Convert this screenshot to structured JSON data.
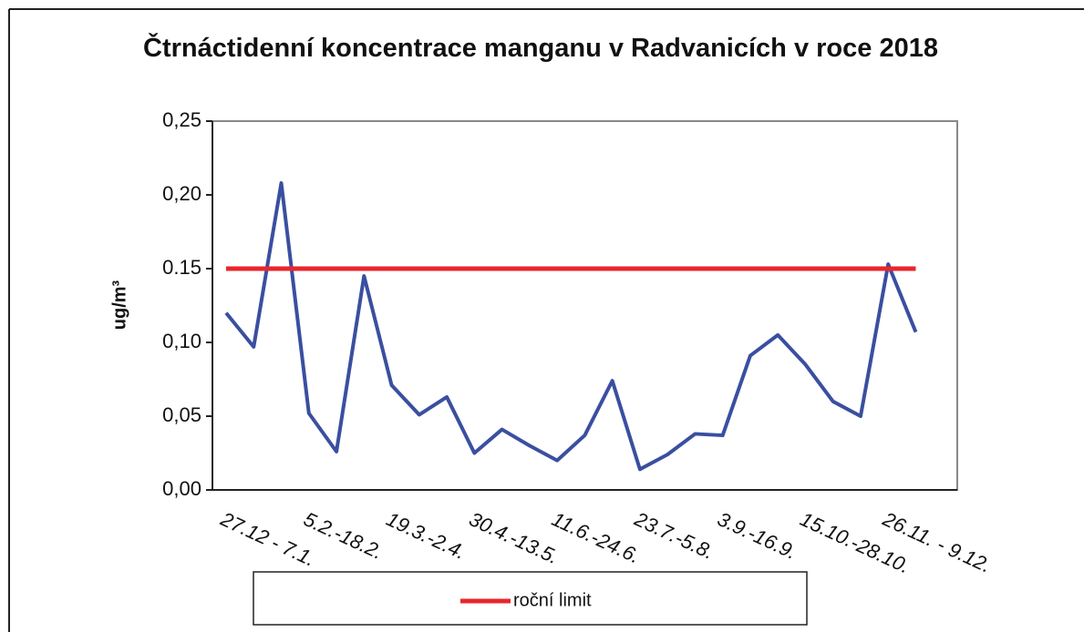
{
  "chart_data": {
    "type": "line",
    "title": "Čtrnáctidenní koncentrace manganu v Radvanicích v roce 2018",
    "y_label": "ug/m³",
    "categories": [
      "27.12 - 7.1.",
      null,
      null,
      "5.2.-18.2.",
      null,
      null,
      "19.3.-2.4.",
      null,
      null,
      "30.4.-13.5.",
      null,
      null,
      "11.6.-24.6.",
      null,
      null,
      "23.7.-5.8.",
      null,
      null,
      "3.9.-16.9.",
      null,
      null,
      "15.10.-28.10.",
      null,
      null,
      "26.11. - 9.12.",
      null
    ],
    "series": [
      {
        "color": "#3a4fa0",
        "values": [
          0.12,
          0.097,
          0.208,
          0.052,
          0.026,
          0.145,
          0.071,
          0.051,
          0.063,
          0.025,
          0.041,
          0.03,
          0.02,
          0.037,
          0.074,
          0.014,
          0.024,
          0.038,
          0.037,
          0.091,
          0.105,
          0.085,
          0.06,
          0.05,
          0.153,
          0.107
        ]
      },
      {
        "name": "roční limit",
        "color": "#e8262b",
        "values": [
          0.15,
          0.15,
          0.15,
          0.15,
          0.15,
          0.15,
          0.15,
          0.15,
          0.15,
          0.15,
          0.15,
          0.15,
          0.15,
          0.15,
          0.15,
          0.15,
          0.15,
          0.15,
          0.15,
          0.15,
          0.15,
          0.15,
          0.15,
          0.15,
          0.15,
          0.15
        ]
      }
    ],
    "ylim": [
      0,
      0.25
    ],
    "yticks": [
      {
        "value": 0,
        "label": "0,00"
      },
      {
        "value": 0.05,
        "label": "0,05"
      },
      {
        "value": 0.1,
        "label": "0,10"
      },
      {
        "value": 0.15,
        "label": "0.15"
      },
      {
        "value": 0.2,
        "label": "0,20"
      },
      {
        "value": 0.25,
        "label": "0,25"
      }
    ],
    "legend": "bottom"
  }
}
